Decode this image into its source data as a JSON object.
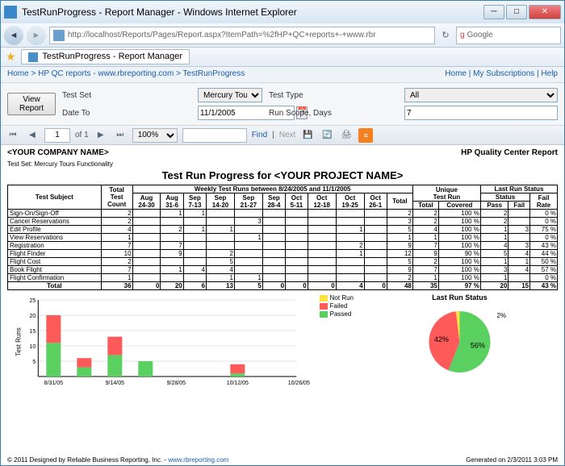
{
  "window": {
    "title": "TestRunProgress - Report Manager - Windows Internet Explorer"
  },
  "url": "http://localhost/Reports/Pages/Report.aspx?ItemPath=%2fHP+QC+reports+-+www.rbr",
  "searchBox": "Google",
  "tab": "TestRunProgress - Report Manager",
  "breadcrumb": {
    "home": "Home",
    "sep1": " > ",
    "qc": "HP QC reports - www.rbreporting.com",
    "sep2": " > ",
    "page": "TestRunProgress",
    "rightHome": "Home",
    "subs": "My Subscriptions",
    "help": "Help"
  },
  "params": {
    "testSetLabel": "Test Set",
    "testSet": "Mercury Tours Functionality",
    "testTypeLabel": "Test Type",
    "testType": "All",
    "dateToLabel": "Date To",
    "dateTo": "11/1/2005",
    "runScopeLabel": "Run Scope, Days",
    "runScope": "7",
    "viewBtn": "View Report"
  },
  "toolbar": {
    "page": "1",
    "of": "of 1",
    "zoom": "100%",
    "find": "Find",
    "next": "Next"
  },
  "report": {
    "company": "<YOUR COMPANY NAME>",
    "right": "HP Quality Center Report",
    "sub": "Test Set: Mercury Tours Functionality",
    "title": "Test Run Progress for <YOUR PROJECT NAME>",
    "weeklyHeader": "Weekly Test Runs between 8/24/2005 and 11/1/2005",
    "cols": {
      "subject": "Test Subject",
      "totalCount": "Total Test Count",
      "weeks": [
        "Aug 24-30",
        "Aug 31-6",
        "Sep 7-13",
        "Sep 14-20",
        "Sep 21-27",
        "Sep 28-4",
        "Oct 5-11",
        "Oct 12-18",
        "Oct 19-25",
        "Oct 26-1"
      ],
      "total": "Total",
      "uniqueRun": "Unique Test Run",
      "uTotal": "Total",
      "uCovered": "Covered",
      "lastRun": "Last Run Status",
      "pass": "Pass",
      "fail": "Fail",
      "failRate": "Fail Rate"
    },
    "rows": [
      {
        "s": "Sign-On/Sign-Off",
        "c": 2,
        "w": [
          "",
          "1",
          "1",
          "",
          "",
          "",
          "",
          "",
          "",
          ""
        ],
        "t": 2,
        "ut": 2,
        "uc": "100 %",
        "p": 2,
        "f": "",
        "fr": "0 %"
      },
      {
        "s": "Cancel Reservations",
        "c": 2,
        "w": [
          "",
          "",
          "",
          "",
          "3",
          "",
          "",
          "",
          "",
          ""
        ],
        "t": 3,
        "ut": 2,
        "uc": "100 %",
        "p": 2,
        "f": "",
        "fr": "0 %"
      },
      {
        "s": "Edit Profile",
        "c": 4,
        "w": [
          "",
          "2",
          "1",
          "1",
          "",
          "",
          "",
          "",
          "1",
          ""
        ],
        "t": 5,
        "ut": 4,
        "uc": "100 %",
        "p": 1,
        "f": 3,
        "fr": "75 %"
      },
      {
        "s": "View Reservations",
        "c": 1,
        "w": [
          "",
          "",
          "",
          "",
          "1",
          "",
          "",
          "",
          "",
          ""
        ],
        "t": 1,
        "ut": 1,
        "uc": "100 %",
        "p": 1,
        "f": "",
        "fr": "0 %"
      },
      {
        "s": "Registration",
        "c": 7,
        "w": [
          "",
          "7",
          "",
          "",
          "",
          "",
          "",
          "",
          "2",
          ""
        ],
        "t": 9,
        "ut": 7,
        "uc": "100 %",
        "p": 4,
        "f": 3,
        "fr": "43 %"
      },
      {
        "s": "Flight Finder",
        "c": 10,
        "w": [
          "",
          "9",
          "",
          "2",
          "",
          "",
          "",
          "",
          "1",
          ""
        ],
        "t": 12,
        "ut": 9,
        "uc": "90 %",
        "p": 5,
        "f": 4,
        "fr": "44 %"
      },
      {
        "s": "Flight Cost",
        "c": 2,
        "w": [
          "",
          "",
          "",
          "5",
          "",
          "",
          "",
          "",
          "",
          ""
        ],
        "t": 5,
        "ut": 2,
        "uc": "100 %",
        "p": 1,
        "f": 1,
        "fr": "50 %"
      },
      {
        "s": "Book Flight",
        "c": 7,
        "w": [
          "",
          "1",
          "4",
          "4",
          "",
          "",
          "",
          "",
          "",
          ""
        ],
        "t": 9,
        "ut": 7,
        "uc": "100 %",
        "p": 3,
        "f": 4,
        "fr": "57 %"
      },
      {
        "s": "Flight Confirmation",
        "c": 1,
        "w": [
          "",
          "",
          "",
          "1",
          "1",
          "",
          "",
          "",
          "",
          ""
        ],
        "t": 2,
        "ut": 1,
        "uc": "100 %",
        "p": 1,
        "f": "",
        "fr": "0 %"
      }
    ],
    "totals": {
      "label": "Total",
      "c": 36,
      "w": [
        0,
        20,
        6,
        13,
        5,
        0,
        0,
        0,
        4,
        0
      ],
      "t": 48,
      "ut": 35,
      "uc": "97 %",
      "p": 20,
      "f": 15,
      "fr": "43 %"
    }
  },
  "barChart": {
    "yMax": 25,
    "yTicks": [
      25,
      20,
      15,
      10,
      5
    ],
    "yLabel": "Test Runs",
    "categories": [
      "8/31/05",
      "9/14/05",
      "9/28/05",
      "10/12/05",
      "10/26/05"
    ],
    "bars": [
      {
        "passed": 11,
        "failed": 9,
        "notrun": 0
      },
      {
        "passed": 3,
        "failed": 3,
        "notrun": 0
      },
      {
        "passed": 7,
        "failed": 6,
        "notrun": 0
      },
      {
        "passed": 5,
        "failed": 0,
        "notrun": 0
      },
      {
        "passed": 0,
        "failed": 0,
        "notrun": 0
      },
      {
        "passed": 0,
        "failed": 0,
        "notrun": 0
      },
      {
        "passed": 1,
        "failed": 3,
        "notrun": 0
      },
      {
        "passed": 0,
        "failed": 0,
        "notrun": 0
      }
    ],
    "colors": {
      "notrun": "#ffe040",
      "failed": "#ff5a5a",
      "passed": "#5ad060"
    },
    "legend": [
      {
        "label": "Not Run",
        "color": "#ffe040"
      },
      {
        "label": "Failed",
        "color": "#ff5a5a"
      },
      {
        "label": "Passed",
        "color": "#5ad060"
      }
    ]
  },
  "pieChart": {
    "title": "Last Run Status",
    "slices": [
      {
        "label": "56%",
        "value": 56,
        "color": "#5ad060"
      },
      {
        "label": "42%",
        "value": 42,
        "color": "#ff5a5a"
      },
      {
        "label": "2%",
        "value": 2,
        "color": "#ffe040"
      }
    ]
  },
  "footer": {
    "left": "© 2011 Designed by Reliable Business Reporting, Inc. - ",
    "link": "www.rbreporting.com",
    "right": "Generated on 2/3/2011 3:03 PM"
  }
}
